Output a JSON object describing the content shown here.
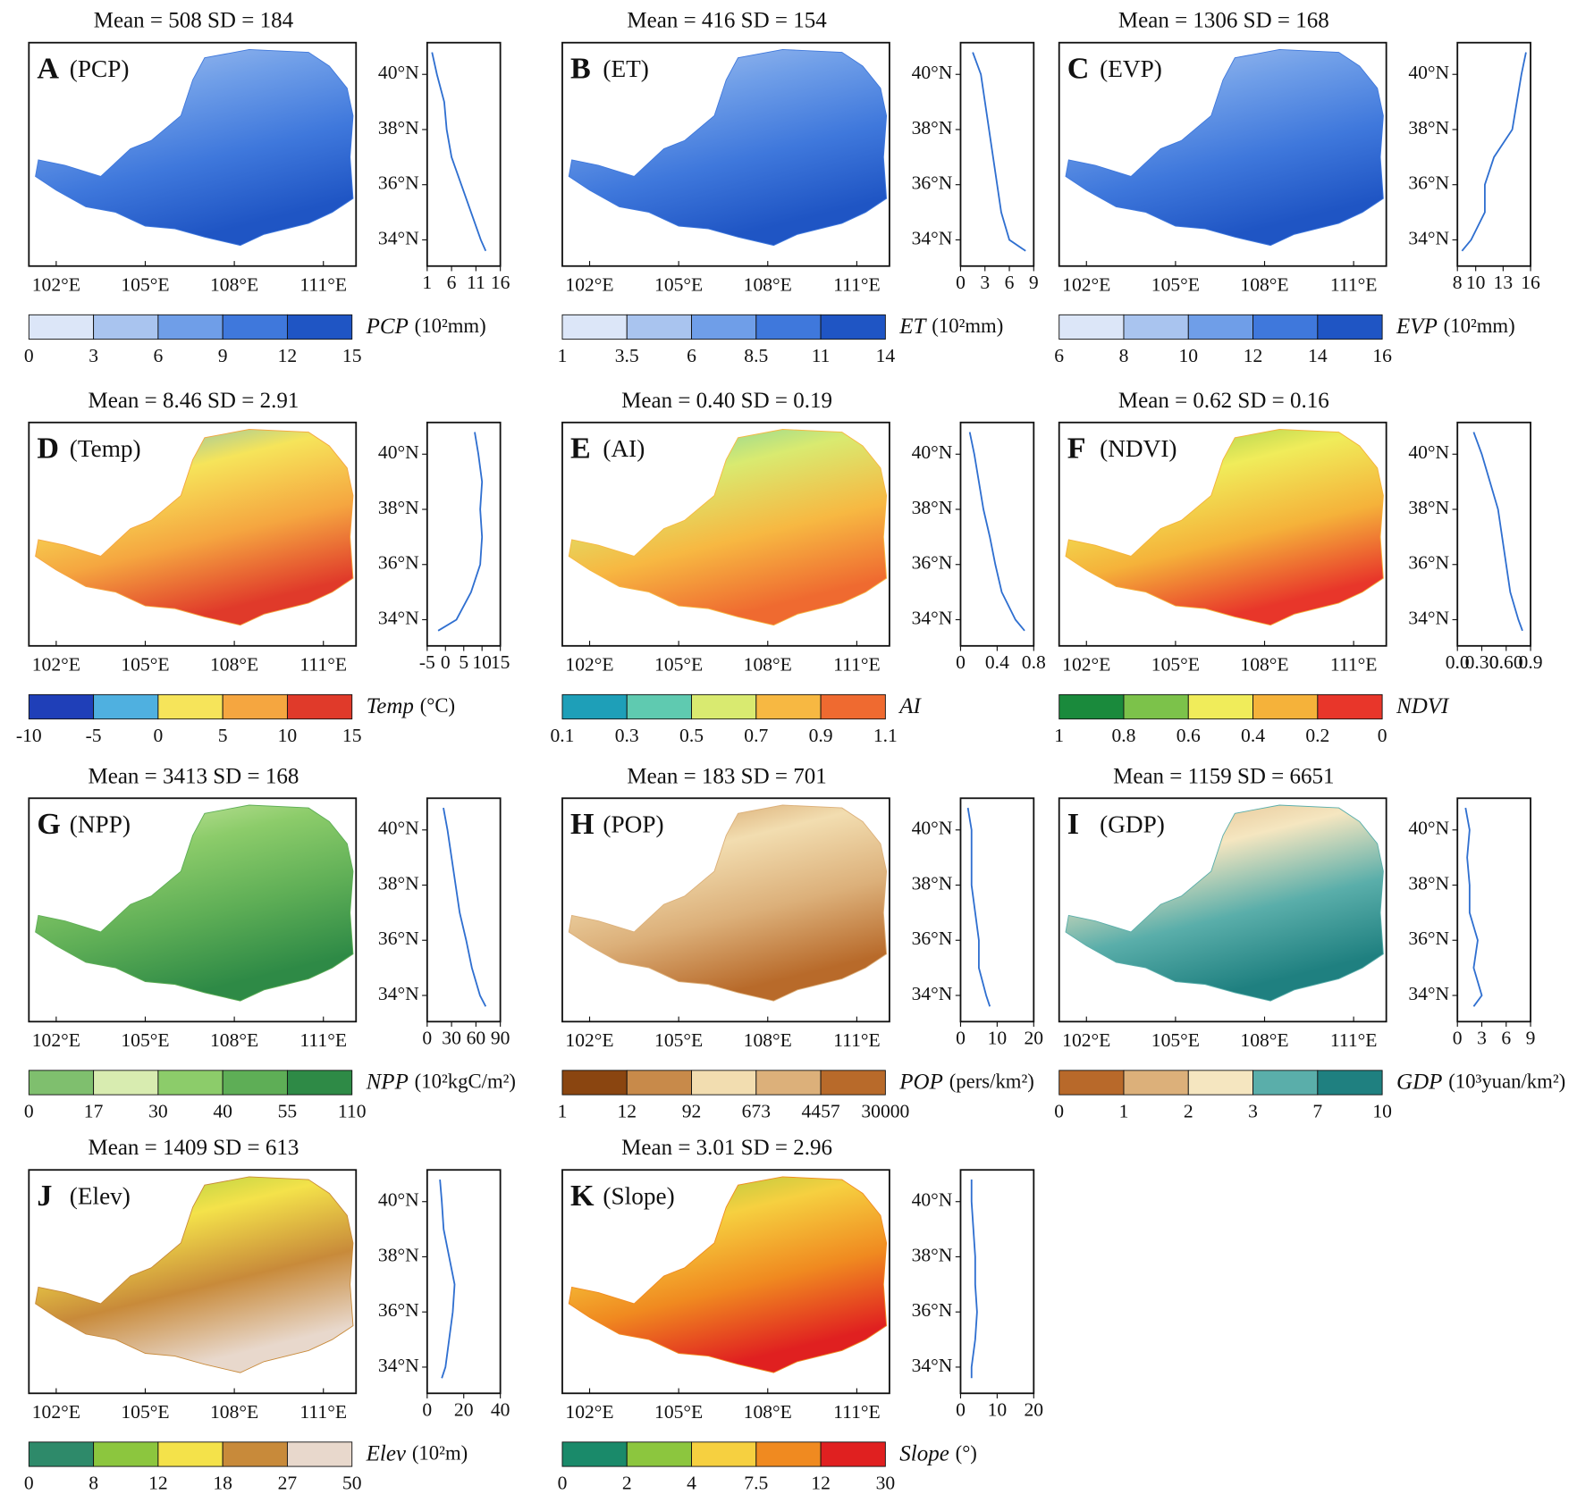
{
  "chart_data": {
    "type": "map-panels",
    "xlim": [
      101.08,
      112.1
    ],
    "xticks": [
      {
        "value": 102,
        "label": "102°E"
      },
      {
        "value": 105,
        "label": "105°E"
      },
      {
        "value": 108,
        "label": "108°E"
      },
      {
        "value": 111,
        "label": "111°E"
      }
    ],
    "ylim": [
      33.05,
      41.15
    ],
    "yticks": [
      {
        "value": 34,
        "label": "34°N"
      },
      {
        "value": 36,
        "label": "36°N"
      },
      {
        "value": 38,
        "label": "38°N"
      },
      {
        "value": 40,
        "label": "40°N"
      }
    ],
    "lat": [
      33.6,
      34,
      35,
      36,
      37,
      38,
      39,
      40,
      40.8
    ],
    "panels": [
      {
        "title": "Mean = 508   SD = 184",
        "letter": "A",
        "name": "(PCP)",
        "profile_xlim": [
          1,
          16
        ],
        "profile_xticks": [
          1,
          6,
          11,
          16
        ],
        "profile_values": [
          13,
          12,
          10,
          8,
          6,
          5,
          4.5,
          3,
          2
        ],
        "colors": [
          "#dce6f8",
          "#a9c4ef",
          "#6f9ee8",
          "#3f78dc",
          "#1f55c4"
        ],
        "breaks": [
          0,
          3,
          6,
          9,
          12,
          15
        ],
        "var": "PCP",
        "unit": "(10²mm)"
      },
      {
        "title": "Mean = 416   SD = 154",
        "letter": "B",
        "name": "(ET)",
        "profile_xlim": [
          0,
          9
        ],
        "profile_xticks": [
          0,
          3,
          6,
          9
        ],
        "profile_values": [
          8,
          6,
          5,
          4.5,
          4,
          3.5,
          3,
          2.5,
          1.5
        ],
        "colors": [
          "#dce6f8",
          "#a9c4ef",
          "#6f9ee8",
          "#3f78dc",
          "#1f55c4"
        ],
        "breaks": [
          1,
          3.5,
          6,
          8.5,
          11,
          14
        ],
        "var": "ET",
        "unit": "(10²mm)"
      },
      {
        "title": "Mean = 1306   SD = 168",
        "letter": "C",
        "name": "(EVP)",
        "profile_xlim": [
          8,
          16
        ],
        "profile_xticks": [
          8,
          10,
          13,
          16
        ],
        "profile_values": [
          8.5,
          9.5,
          11,
          11,
          12,
          14,
          14.5,
          15,
          15.5
        ],
        "colors": [
          "#dce6f8",
          "#a9c4ef",
          "#6f9ee8",
          "#3f78dc",
          "#1f55c4"
        ],
        "breaks": [
          6,
          8,
          10,
          12,
          14,
          16
        ],
        "var": "EVP",
        "unit": "(10²mm)"
      },
      {
        "title": "Mean = 8.46   SD = 2.91",
        "letter": "D",
        "name": "(Temp)",
        "profile_xlim": [
          -5,
          15
        ],
        "profile_xticks": [
          -5,
          0,
          5,
          10,
          15
        ],
        "profile_values": [
          -2,
          3,
          7,
          9.5,
          10,
          9.5,
          10,
          9,
          8
        ],
        "colors": [
          "#1f3fb8",
          "#4fb0e0",
          "#f6e45a",
          "#f5a640",
          "#e03a2a"
        ],
        "breaks": [
          -10,
          -5,
          0,
          5,
          10,
          15
        ],
        "var": "Temp",
        "unit": "(°C)"
      },
      {
        "title": "Mean = 0.40   SD = 0.19",
        "letter": "E",
        "name": "(AI)",
        "profile_xlim": [
          0,
          0.8
        ],
        "profile_xticks": [
          0,
          0.4,
          0.8
        ],
        "profile_values": [
          0.7,
          0.6,
          0.45,
          0.38,
          0.32,
          0.25,
          0.2,
          0.15,
          0.1
        ],
        "colors": [
          "#1e9fb8",
          "#5fcab0",
          "#d9ea70",
          "#f7b842",
          "#ef6a30"
        ],
        "breaks": [
          0.1,
          0.3,
          0.5,
          0.7,
          0.9,
          1.1
        ],
        "var": "AI"
      },
      {
        "title": "Mean = 0.62   SD = 0.16",
        "letter": "F",
        "name": "(NDVI)",
        "profile_xlim": [
          0,
          0.9
        ],
        "profile_xticks": [
          {
            "value": 0,
            "label": "0.0"
          },
          {
            "value": 0.3,
            "label": "0.30"
          },
          {
            "value": 0.6,
            "label": "0.60"
          },
          0.9
        ],
        "profile_values": [
          0.8,
          0.75,
          0.65,
          0.6,
          0.55,
          0.5,
          0.4,
          0.3,
          0.2
        ],
        "colors": [
          "#1a8a3c",
          "#7cc24a",
          "#f0ec5a",
          "#f5b23a",
          "#e8362a"
        ],
        "breaks": [
          1,
          0.8,
          0.6,
          0.4,
          0.2,
          0
        ],
        "var": "NDVI"
      },
      {
        "title": "Mean = 3413   SD = 168",
        "letter": "G",
        "name": "(NPP)",
        "profile_xlim": [
          0,
          90
        ],
        "profile_xticks": [
          0,
          30,
          60,
          90
        ],
        "profile_values": [
          72,
          65,
          55,
          48,
          40,
          35,
          30,
          25,
          20
        ],
        "colors": [
          "#7fbf6e",
          "#d8ecb0",
          "#8ccc6a",
          "#5eae56",
          "#2e8a46"
        ],
        "breaks": [
          0,
          17,
          30,
          40,
          55,
          110
        ],
        "var": "NPP",
        "unit": "(10²kgC/m²)"
      },
      {
        "title": "Mean = 183   SD = 701",
        "letter": "H",
        "name": "(POP)",
        "profile_xlim": [
          0,
          20
        ],
        "profile_xticks": [
          0,
          10,
          20
        ],
        "profile_values": [
          8,
          7,
          5,
          5,
          4,
          3,
          3,
          3,
          2
        ],
        "colors": [
          "#8a4510",
          "#c88a4a",
          "#f2ddb0",
          "#dcb07a",
          "#b86a2a"
        ],
        "breaks": [
          1,
          12,
          92,
          673,
          4457,
          30000
        ],
        "var": "POP",
        "unit": "(pers/km²)"
      },
      {
        "title": "Mean = 1159   SD = 6651",
        "letter": "I",
        "name": "(GDP)",
        "profile_xlim": [
          0,
          9
        ],
        "profile_xticks": [
          0,
          3,
          6,
          9
        ],
        "profile_values": [
          2,
          3,
          2,
          2.5,
          1.5,
          1.5,
          1.2,
          1.5,
          1
        ],
        "colors": [
          "#b8692a",
          "#dcb07a",
          "#f5e6c0",
          "#5aaeaa",
          "#1f8080"
        ],
        "breaks": [
          0,
          1,
          2,
          3,
          7,
          10
        ],
        "var": "GDP",
        "unit": "(10³yuan/km²)"
      },
      {
        "title": "Mean = 1409   SD = 613",
        "letter": "J",
        "name": "(Elev)",
        "profile_xlim": [
          0,
          40
        ],
        "profile_xticks": [
          0,
          20,
          40
        ],
        "profile_values": [
          8,
          10,
          12,
          14,
          15,
          12,
          9,
          8,
          7
        ],
        "colors": [
          "#2e8a6a",
          "#8cc63e",
          "#f4e24a",
          "#c88a3a",
          "#e8d8cc"
        ],
        "breaks": [
          0,
          8,
          12,
          18,
          27,
          50
        ],
        "var": "Elev",
        "unit": "(10²m)"
      },
      {
        "title": "Mean = 3.01   SD = 2.96",
        "letter": "K",
        "name": "(Slope)",
        "profile_xlim": [
          0,
          20
        ],
        "profile_xticks": [
          0,
          10,
          20
        ],
        "profile_values": [
          3,
          3,
          4,
          4.5,
          4,
          4,
          3.5,
          3,
          3
        ],
        "colors": [
          "#1a8a6a",
          "#8cc63e",
          "#f6d040",
          "#f08a20",
          "#e02020"
        ],
        "breaks": [
          0,
          2,
          4,
          7.5,
          12,
          30
        ],
        "var": "Slope",
        "unit": "(°)"
      }
    ]
  }
}
